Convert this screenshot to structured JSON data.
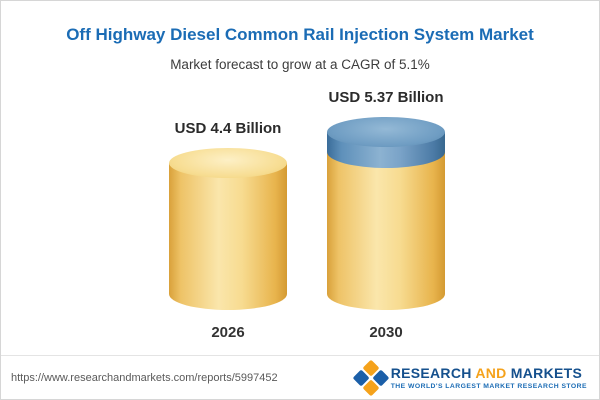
{
  "header": {
    "title": "Off Highway Diesel Common Rail Injection System Market",
    "subtitle": "Market forecast to grow at a CAGR of 5.1%"
  },
  "chart_data": {
    "type": "bar",
    "bar_style": "cylinder",
    "categories": [
      "2026",
      "2030"
    ],
    "values": [
      4.4,
      5.37
    ],
    "value_labels": [
      "USD 4.4 Billion",
      "USD 5.37 Billion"
    ],
    "unit": "USD Billion",
    "title": "Off Highway Diesel Common Rail Injection System Market",
    "subtitle": "Market forecast to grow at a CAGR of 5.1%",
    "cagr": "5.1%",
    "ylim": [
      0,
      5.37
    ],
    "grid": false,
    "legend": false,
    "annotations": "2030 bar has a blue top segment representing growth over 2026"
  },
  "colors": {
    "title_blue": "#1b6cb5",
    "bar_yellow": "#f7db90",
    "bar_blue": "#6f9dc3",
    "logo_blue": "#15508d",
    "logo_orange": "#f5a21b"
  },
  "footer": {
    "url": "https://www.researchandmarkets.com/reports/5997452",
    "logo": {
      "word1": "RESEARCH",
      "word2": "AND",
      "word3": "MARKETS",
      "tagline": "THE WORLD'S LARGEST MARKET RESEARCH STORE"
    }
  }
}
